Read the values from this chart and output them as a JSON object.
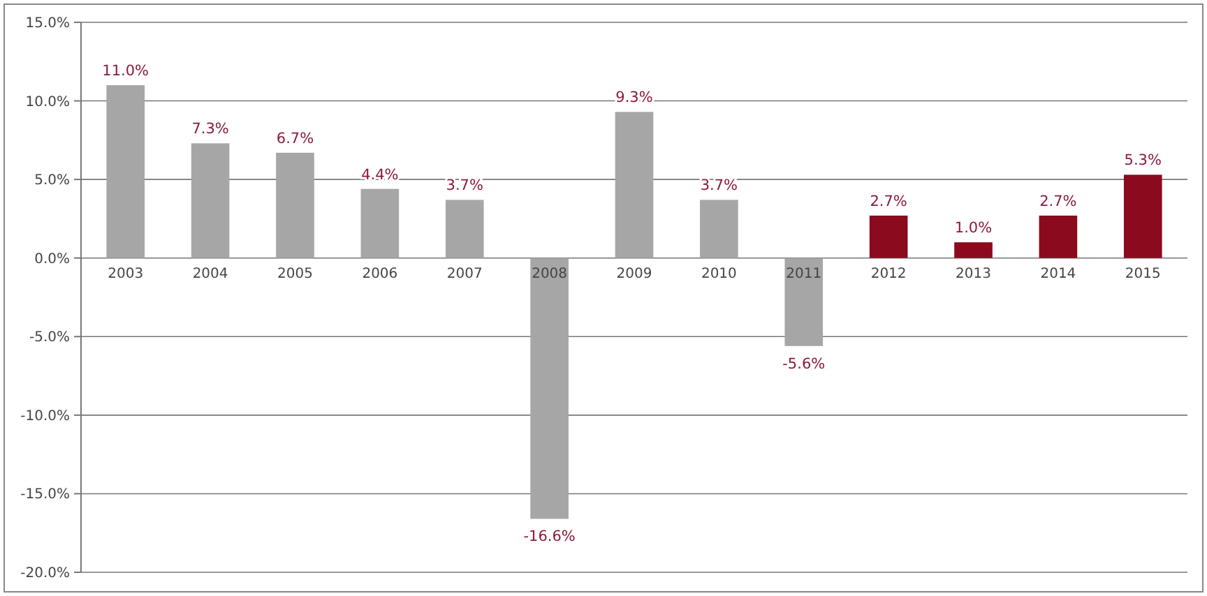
{
  "chart_data": {
    "type": "bar",
    "categories": [
      "2003",
      "2004",
      "2005",
      "2006",
      "2007",
      "2008",
      "2009",
      "2010",
      "2011",
      "2012",
      "2013",
      "2014",
      "2015"
    ],
    "values": [
      11.0,
      7.3,
      6.7,
      4.4,
      3.7,
      -16.6,
      9.3,
      3.7,
      -5.6,
      2.7,
      1.0,
      2.7,
      5.3
    ],
    "colors": [
      "#a6a6a6",
      "#a6a6a6",
      "#a6a6a6",
      "#a6a6a6",
      "#a6a6a6",
      "#a6a6a6",
      "#a6a6a6",
      "#a6a6a6",
      "#a6a6a6",
      "#8b0a1e",
      "#8b0a1e",
      "#8b0a1e",
      "#8b0a1e"
    ],
    "value_labels": [
      "11.0%",
      "7.3%",
      "6.7%",
      "4.4%",
      "3.7%",
      "-16.6%",
      "9.3%",
      "3.7%",
      "-5.6%",
      "2.7%",
      "1.0%",
      "2.7%",
      "5.3%"
    ],
    "ylim": [
      -20,
      15
    ],
    "yticks": [
      {
        "value": -20,
        "label": "-20.0%"
      },
      {
        "value": -15,
        "label": "-15.0%"
      },
      {
        "value": -10,
        "label": "-10.0%"
      },
      {
        "value": -5,
        "label": "-5.0%"
      },
      {
        "value": 0,
        "label": "0.0%"
      },
      {
        "value": 5,
        "label": "5.0%"
      },
      {
        "value": 10,
        "label": "10.0%"
      },
      {
        "value": 15,
        "label": "15.0%"
      }
    ],
    "grid": "y"
  }
}
